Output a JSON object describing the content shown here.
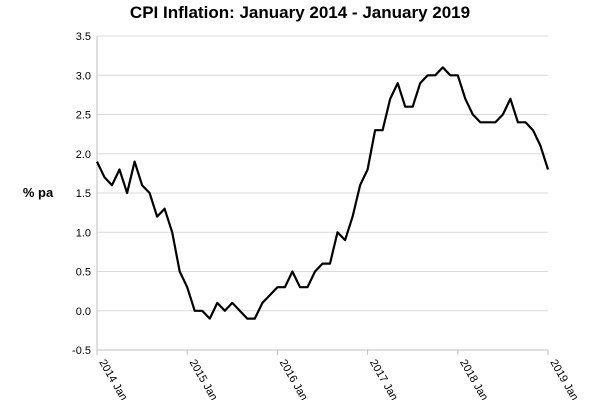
{
  "chart_data": {
    "type": "line",
    "title": "CPI Inflation: January 2014 - January 2019",
    "ylabel": "% pa",
    "xlabel": "",
    "ylim": [
      -0.5,
      3.5
    ],
    "yticks": [
      -0.5,
      0.0,
      0.5,
      1.0,
      1.5,
      2.0,
      2.5,
      3.0,
      3.5
    ],
    "ytick_labels": [
      "-0.5",
      "0.0",
      "0.5",
      "1.0",
      "1.5",
      "2.0",
      "2.5",
      "3.0",
      "3.5"
    ],
    "x_start": "2014-01",
    "x_end": "2019-01",
    "xtick_labels": [
      "2014 Jan",
      "2015 Jan",
      "2016 Jan",
      "2017 Jan",
      "2018 Jan",
      "2019 Jan"
    ],
    "xtick_dates": [
      "2014-01",
      "2015-01",
      "2016-01",
      "2017-01",
      "2018-01",
      "2019-01"
    ],
    "grid": "horizontal",
    "color": "#000000",
    "x": [
      "2014-01",
      "2014-02",
      "2014-03",
      "2014-04",
      "2014-05",
      "2014-06",
      "2014-07",
      "2014-08",
      "2014-09",
      "2014-10",
      "2014-11",
      "2014-12",
      "2015-01",
      "2015-02",
      "2015-03",
      "2015-04",
      "2015-05",
      "2015-06",
      "2015-07",
      "2015-08",
      "2015-09",
      "2015-10",
      "2015-11",
      "2015-12",
      "2016-01",
      "2016-02",
      "2016-03",
      "2016-04",
      "2016-05",
      "2016-06",
      "2016-07",
      "2016-08",
      "2016-09",
      "2016-10",
      "2016-11",
      "2016-12",
      "2017-01",
      "2017-02",
      "2017-03",
      "2017-04",
      "2017-05",
      "2017-06",
      "2017-07",
      "2017-08",
      "2017-09",
      "2017-10",
      "2017-11",
      "2017-12",
      "2018-01",
      "2018-02",
      "2018-03",
      "2018-04",
      "2018-05",
      "2018-06",
      "2018-07",
      "2018-08",
      "2018-09",
      "2018-10",
      "2018-11",
      "2018-12",
      "2019-01"
    ],
    "values": [
      1.9,
      1.7,
      1.6,
      1.8,
      1.5,
      1.9,
      1.6,
      1.5,
      1.2,
      1.3,
      1.0,
      0.5,
      0.3,
      0.0,
      0.0,
      -0.1,
      0.1,
      0.0,
      0.1,
      0.0,
      -0.1,
      -0.1,
      0.1,
      0.2,
      0.3,
      0.3,
      0.5,
      0.3,
      0.3,
      0.5,
      0.6,
      0.6,
      1.0,
      0.9,
      1.2,
      1.6,
      1.8,
      2.3,
      2.3,
      2.7,
      2.9,
      2.6,
      2.6,
      2.9,
      3.0,
      3.0,
      3.1,
      3.0,
      3.0,
      2.7,
      2.5,
      2.4,
      2.4,
      2.4,
      2.5,
      2.7,
      2.4,
      2.4,
      2.3,
      2.1,
      1.8
    ]
  }
}
